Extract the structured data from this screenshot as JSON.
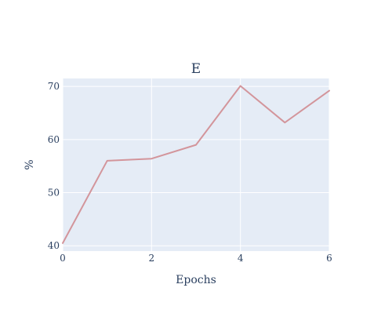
{
  "chart_data": {
    "type": "line",
    "title": "E",
    "xlabel": "Epochs",
    "ylabel": "%",
    "x": [
      0,
      1,
      2,
      3,
      4,
      5,
      6
    ],
    "series": [
      {
        "values": [
          40.5,
          56.0,
          56.4,
          59.0,
          70.1,
          63.2,
          69.2
        ],
        "color": "#d3959b"
      }
    ],
    "xlim": [
      0,
      6
    ],
    "ylim": [
      39.0,
      71.5
    ],
    "xticks": [
      0,
      2,
      4,
      6
    ],
    "yticks": [
      40,
      50,
      60,
      70
    ],
    "grid": true,
    "plot_background": "#e5ecf6",
    "grid_color": "#ffffff",
    "text_color": "#2a3f5f"
  }
}
